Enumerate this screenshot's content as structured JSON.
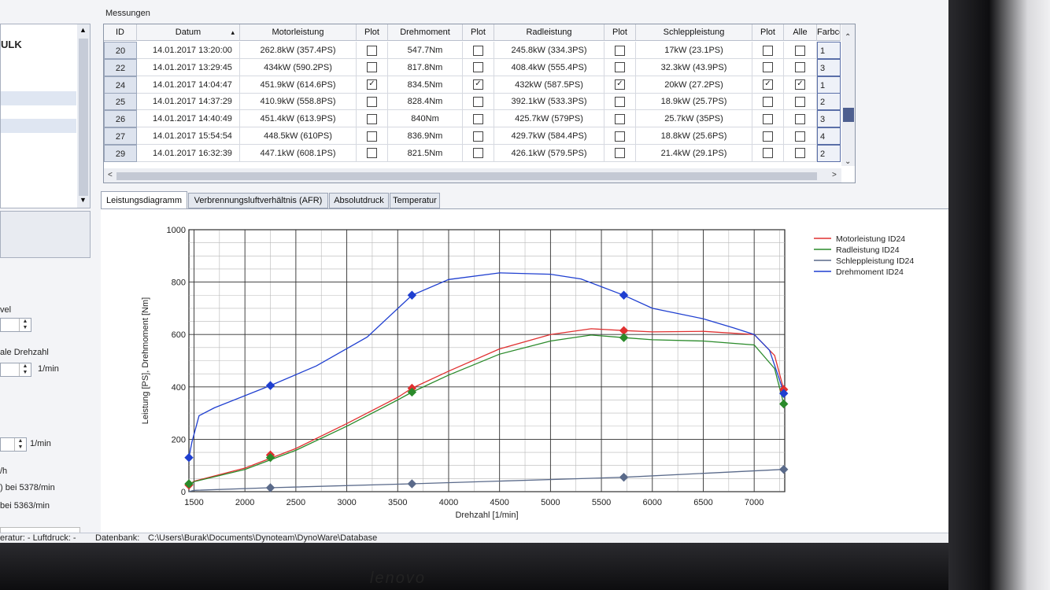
{
  "left_panel": {
    "visible_item": "ULK",
    "label_level": "vel",
    "label_max_rpm": "ale Drehzahl",
    "unit_rpm_1": "1/min",
    "unit_rpm_2": "1/min",
    "unit_speed": "/h",
    "peak_power_info": ") bei 5378/min",
    "peak_torque_info": "bei 5363/min"
  },
  "messungen": {
    "title": "Messungen",
    "columns": [
      "ID",
      "Datum",
      "Motorleistung",
      "Plot",
      "Drehmoment",
      "Plot",
      "Radleistung",
      "Plot",
      "Schleppleistung",
      "Plot",
      "Alle",
      "Farbco"
    ],
    "rows": [
      {
        "id": "20",
        "datum": "14.01.2017 13:20:00",
        "motor": "262.8kW (357.4PS)",
        "motor_plot": false,
        "dreh": "547.7Nm",
        "dreh_plot": false,
        "rad": "245.8kW (334.3PS)",
        "rad_plot": false,
        "schlepp": "17kW (23.1PS)",
        "schlepp_plot": false,
        "alle": false,
        "farb": "1"
      },
      {
        "id": "22",
        "datum": "14.01.2017 13:29:45",
        "motor": "434kW (590.2PS)",
        "motor_plot": false,
        "dreh": "817.8Nm",
        "dreh_plot": false,
        "rad": "408.4kW (555.4PS)",
        "rad_plot": false,
        "schlepp": "32.3kW (43.9PS)",
        "schlepp_plot": false,
        "alle": false,
        "farb": "3"
      },
      {
        "id": "24",
        "datum": "14.01.2017 14:04:47",
        "motor": "451.9kW (614.6PS)",
        "motor_plot": true,
        "dreh": "834.5Nm",
        "dreh_plot": true,
        "rad": "432kW (587.5PS)",
        "rad_plot": true,
        "schlepp": "20kW (27.2PS)",
        "schlepp_plot": true,
        "alle": true,
        "farb": "1"
      },
      {
        "id": "25",
        "datum": "14.01.2017 14:37:29",
        "motor": "410.9kW (558.8PS)",
        "motor_plot": false,
        "dreh": "828.4Nm",
        "dreh_plot": false,
        "rad": "392.1kW (533.3PS)",
        "rad_plot": false,
        "schlepp": "18.9kW (25.7PS)",
        "schlepp_plot": false,
        "alle": false,
        "farb": "2"
      },
      {
        "id": "26",
        "datum": "14.01.2017 14:40:49",
        "motor": "451.4kW (613.9PS)",
        "motor_plot": false,
        "dreh": "840Nm",
        "dreh_plot": false,
        "rad": "425.7kW (579PS)",
        "rad_plot": false,
        "schlepp": "25.7kW (35PS)",
        "schlepp_plot": false,
        "alle": false,
        "farb": "3"
      },
      {
        "id": "27",
        "datum": "14.01.2017 15:54:54",
        "motor": "448.5kW (610PS)",
        "motor_plot": false,
        "dreh": "836.9Nm",
        "dreh_plot": false,
        "rad": "429.7kW (584.4PS)",
        "rad_plot": false,
        "schlepp": "18.8kW (25.6PS)",
        "schlepp_plot": false,
        "alle": false,
        "farb": "4"
      },
      {
        "id": "29",
        "datum": "14.01.2017 16:32:39",
        "motor": "447.1kW (608.1PS)",
        "motor_plot": false,
        "dreh": "821.5Nm",
        "dreh_plot": false,
        "rad": "426.1kW (579.5PS)",
        "rad_plot": false,
        "schlepp": "21.4kW (29.1PS)",
        "schlepp_plot": false,
        "alle": false,
        "farb": "2"
      }
    ]
  },
  "tabs": [
    "Leistungsdiagramm",
    "Verbrennungsluftverhältnis (AFR)",
    "Absolutdruck",
    "Temperatur"
  ],
  "status_bar": {
    "left": "eratur: -  Luftdruck: -",
    "db_label": "Datenbank:",
    "db_path": "C:\\Users\\Burak\\Documents\\Dynoteam\\DynoWare\\Database"
  },
  "brand": "lenovo",
  "chart_data": {
    "type": "line",
    "title": "",
    "xlabel": "Drehzahl [1/min]",
    "ylabel": "Leistung [PS], Drehmoment [Nm]",
    "xlim": [
      1450,
      7300
    ],
    "ylim": [
      0,
      1000
    ],
    "xticks": [
      1500,
      2000,
      2500,
      3000,
      3500,
      4000,
      4500,
      5000,
      5500,
      6000,
      6500,
      7000
    ],
    "yticks": [
      0,
      200,
      400,
      600,
      800,
      1000
    ],
    "grid": true,
    "legend_position": "top-right",
    "series": [
      {
        "name": "Motorleistung ID24",
        "color": "#e03030",
        "x": [
          1450,
          1500,
          2000,
          2500,
          3000,
          3500,
          3640,
          4000,
          4500,
          5000,
          5400,
          5720,
          6000,
          6500,
          7000,
          7200,
          7290
        ],
        "y": [
          25,
          40,
          90,
          165,
          260,
          360,
          395,
          460,
          545,
          600,
          622,
          615,
          610,
          612,
          600,
          520,
          390
        ]
      },
      {
        "name": "Radleistung ID24",
        "color": "#2a8a2a",
        "x": [
          1450,
          1500,
          2000,
          2500,
          3000,
          3500,
          3640,
          4000,
          4500,
          5000,
          5400,
          5720,
          6000,
          6500,
          7000,
          7200,
          7290
        ],
        "y": [
          25,
          38,
          85,
          158,
          250,
          350,
          380,
          445,
          525,
          575,
          598,
          588,
          580,
          575,
          560,
          470,
          335
        ]
      },
      {
        "name": "Schleppleistung ID24",
        "color": "#5a6a8a",
        "x": [
          1450,
          1500,
          2250,
          3640,
          5720,
          7290
        ],
        "y": [
          0,
          5,
          15,
          30,
          55,
          85
        ]
      },
      {
        "name": "Drehmoment ID24",
        "color": "#1f3fd0",
        "x": [
          1450,
          1480,
          1550,
          1700,
          2250,
          2700,
          3200,
          3640,
          4000,
          4500,
          5000,
          5300,
          5720,
          6000,
          6500,
          6800,
          7000,
          7150,
          7290
        ],
        "y": [
          130,
          190,
          290,
          320,
          405,
          480,
          590,
          750,
          810,
          835,
          830,
          812,
          750,
          700,
          660,
          625,
          600,
          540,
          380
        ]
      }
    ],
    "markers": [
      {
        "series": "Motorleistung ID24",
        "x": [
          1450,
          2250,
          3640,
          5720,
          7290
        ],
        "y": [
          25,
          140,
          395,
          615,
          390
        ]
      },
      {
        "series": "Radleistung ID24",
        "x": [
          1450,
          2250,
          3640,
          5720,
          7290
        ],
        "y": [
          30,
          130,
          380,
          588,
          335
        ]
      },
      {
        "series": "Schleppleistung ID24",
        "x": [
          2250,
          3640,
          5720,
          7290
        ],
        "y": [
          15,
          30,
          55,
          85
        ]
      },
      {
        "series": "Drehmoment ID24",
        "x": [
          1450,
          2250,
          3640,
          5720,
          7290
        ],
        "y": [
          130,
          405,
          750,
          750,
          375
        ]
      }
    ]
  }
}
